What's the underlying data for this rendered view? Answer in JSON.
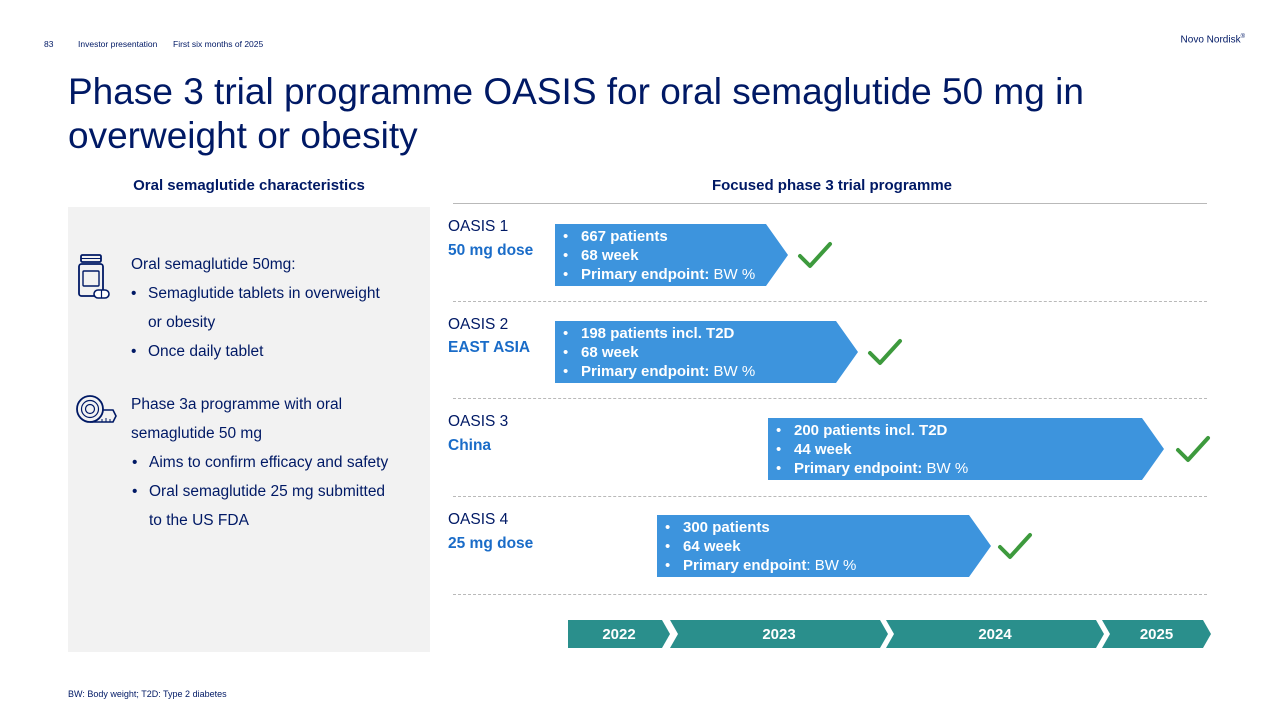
{
  "header": {
    "page_number": "83",
    "presentation": "Investor presentation",
    "period": "First six months of 2025",
    "brand": "Novo Nordisk",
    "brand_mark": "®"
  },
  "title": "Phase 3 trial programme OASIS for oral semaglutide 50 mg in overweight or obesity",
  "left": {
    "heading": "Oral semaglutide  characteristics",
    "block1": {
      "icon": "pill-bottle-icon",
      "title": "Oral semaglutide 50mg:",
      "bullets": [
        "Semaglutide tablets in overweight",
        "or obesity",
        "Once daily tablet"
      ]
    },
    "block2": {
      "icon": "measuring-tape-icon",
      "title_line1": "Phase 3a programme with oral",
      "title_line2": "semaglutide 50 mg",
      "bullets": [
        "Aims to confirm efficacy and safety",
        "Oral semaglutide 25 mg submitted",
        "to the US FDA"
      ]
    }
  },
  "right": {
    "heading": "Focused phase 3 trial programme",
    "trials": [
      {
        "name": "OASIS 1",
        "sub": "50 mg dose",
        "patients": "667 patients",
        "duration": "68 week",
        "endpoint_label": "Primary endpoint:",
        "endpoint_value": " BW %"
      },
      {
        "name": "OASIS 2",
        "sub": "EAST ASIA",
        "patients": "198 patients incl. T2D",
        "duration": "68 week",
        "endpoint_label": "Primary endpoint:",
        "endpoint_value": " BW %"
      },
      {
        "name": "OASIS 3",
        "sub": "China",
        "patients": "200 patients incl. T2D",
        "duration": "44 week",
        "endpoint_label": "Primary endpoint:",
        "endpoint_value": " BW %"
      },
      {
        "name": "OASIS 4",
        "sub": "25 mg dose",
        "patients": "300 patients",
        "duration": "64 week",
        "endpoint_label": "Primary endpoint",
        "endpoint_value": ": BW %"
      }
    ],
    "years": [
      "2022",
      "2023",
      "2024",
      "2025"
    ]
  },
  "colors": {
    "navy": "#001965",
    "arrow_blue": "#3d94dd",
    "timeline_teal": "#2a8f8c",
    "check_green": "#3d9a3d",
    "panel_grey": "#f2f2f2"
  },
  "footnote": "BW: Body weight; T2D: Type 2 diabetes"
}
